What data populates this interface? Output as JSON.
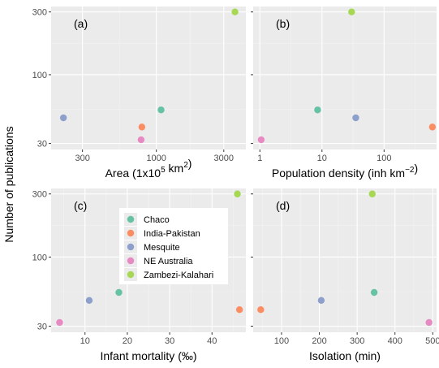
{
  "colors": {
    "Chaco": "#66c2a5",
    "India-Pakistan": "#fc8d62",
    "Mesquite": "#8da0cb",
    "NE Australia": "#e78ac3",
    "Zambezi-Kalahari": "#a6d854"
  },
  "chart_data": [
    {
      "type": "scatter",
      "tag": "(a)",
      "xlabel": "Area (1x10",
      "xlabel_sup": "5",
      "xlabel_tail": " km",
      "xlabel_sup2": "2",
      "xlabel_end": ")",
      "xscale": "log",
      "xlim": [
        180,
        4300
      ],
      "xticks": [
        300,
        1000,
        3000
      ],
      "xtick_labels": [
        "300",
        "1000",
        "3000"
      ],
      "yscale": "log",
      "ylim": [
        27,
        330
      ],
      "yticks": [
        30,
        100,
        300
      ],
      "ytick_labels": [
        "30",
        "100",
        "300"
      ],
      "points": [
        {
          "series": "Chaco",
          "x": 1080,
          "y": 54
        },
        {
          "series": "India-Pakistan",
          "x": 790,
          "y": 40
        },
        {
          "series": "Mesquite",
          "x": 220,
          "y": 47
        },
        {
          "series": "NE Australia",
          "x": 780,
          "y": 32
        },
        {
          "series": "Zambezi-Kalahari",
          "x": 3600,
          "y": 300
        }
      ]
    },
    {
      "type": "scatter",
      "tag": "(b)",
      "xlabel": "Population density (inh km",
      "xlabel_sup": "−2",
      "xlabel_end": ")",
      "xscale": "log",
      "xlim": [
        0.78,
        700
      ],
      "xticks": [
        1,
        10,
        100
      ],
      "xtick_labels": [
        "1",
        "10",
        "100"
      ],
      "yscale": "log",
      "ylim": [
        27,
        330
      ],
      "yticks": [
        30,
        100,
        300
      ],
      "ytick_labels": [
        "",
        "",
        ""
      ],
      "points": [
        {
          "series": "Chaco",
          "x": 8.5,
          "y": 54
        },
        {
          "series": "India-Pakistan",
          "x": 600,
          "y": 40
        },
        {
          "series": "Mesquite",
          "x": 35,
          "y": 47
        },
        {
          "series": "NE Australia",
          "x": 1.05,
          "y": 32
        },
        {
          "series": "Zambezi-Kalahari",
          "x": 30,
          "y": 300
        }
      ]
    },
    {
      "type": "scatter",
      "tag": "(c)",
      "xlabel": "Infant mortality (‰)",
      "xscale": "linear",
      "xlim": [
        2,
        48
      ],
      "xticks": [
        10,
        20,
        30,
        40
      ],
      "xtick_labels": [
        "10",
        "20",
        "30",
        "40"
      ],
      "yscale": "log",
      "ylim": [
        27,
        330
      ],
      "yticks": [
        30,
        100,
        300
      ],
      "ytick_labels": [
        "30",
        "100",
        "300"
      ],
      "points": [
        {
          "series": "Chaco",
          "x": 18,
          "y": 54
        },
        {
          "series": "India-Pakistan",
          "x": 46.5,
          "y": 40
        },
        {
          "series": "Mesquite",
          "x": 11,
          "y": 47
        },
        {
          "series": "NE Australia",
          "x": 4,
          "y": 32
        },
        {
          "series": "Zambezi-Kalahari",
          "x": 46,
          "y": 300
        }
      ]
    },
    {
      "type": "scatter",
      "tag": "(d)",
      "xlabel": "Isolation (min)",
      "xscale": "linear",
      "xlim": [
        25,
        510
      ],
      "xticks": [
        100,
        200,
        300,
        400,
        500
      ],
      "xtick_labels": [
        "100",
        "200",
        "300",
        "400",
        "500"
      ],
      "yscale": "log",
      "ylim": [
        27,
        330
      ],
      "yticks": [
        30,
        100,
        300
      ],
      "ytick_labels": [
        "",
        "",
        ""
      ],
      "points": [
        {
          "series": "Chaco",
          "x": 345,
          "y": 54
        },
        {
          "series": "India-Pakistan",
          "x": 45,
          "y": 40
        },
        {
          "series": "Mesquite",
          "x": 205,
          "y": 47
        },
        {
          "series": "NE Australia",
          "x": 490,
          "y": 32
        },
        {
          "series": "Zambezi-Kalahari",
          "x": 340,
          "y": 300
        }
      ]
    }
  ],
  "ylabel": "Number of publications",
  "legend": {
    "placement": "inside panel (c), top-right",
    "entries": [
      "Chaco",
      "India-Pakistan",
      "Mesquite",
      "NE Australia",
      "Zambezi-Kalahari"
    ]
  }
}
